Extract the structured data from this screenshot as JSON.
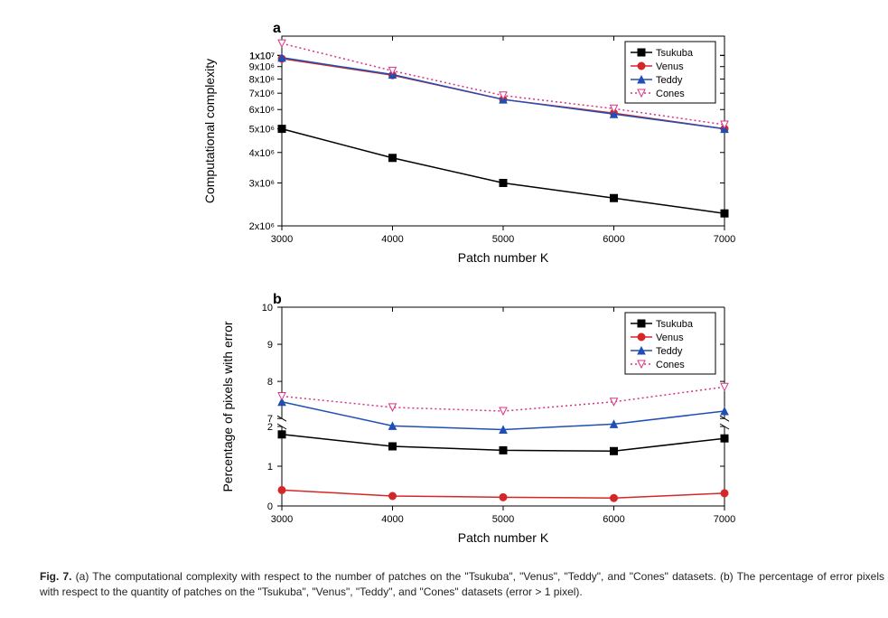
{
  "chart_a": {
    "panel_label": "a",
    "panel_label_fontsize": 16,
    "panel_label_fontweight": "bold",
    "type": "line",
    "xlabel": "Patch number K",
    "ylabel": "Computational complexity",
    "label_fontsize": 14,
    "tick_fontsize": 11,
    "xlim": [
      3000,
      7000
    ],
    "xticks": [
      3000,
      4000,
      5000,
      6000,
      7000
    ],
    "yscale": "log",
    "ylim": [
      2000000.0,
      12000000.0
    ],
    "yticks": [
      2000000.0,
      3000000.0,
      4000000.0,
      5000000.0,
      6000000.0,
      7000000.0,
      8000000.0,
      9000000.0,
      10000000.0,
      10000000.0,
      10000000.0
    ],
    "ytick_labels": [
      "2x10⁶",
      "3x10⁶",
      "4x10⁶",
      "5x10⁶",
      "6x10⁶",
      "7x10⁶",
      "8x10⁶",
      "9x10⁶",
      "1x10⁷",
      "1x10⁷",
      "1x10⁷"
    ],
    "background_color": "#ffffff",
    "axis_color": "#000000",
    "series": [
      {
        "name": "Tsukuba",
        "color": "#000000",
        "marker": "square",
        "marker_fill": "#000000",
        "line_style": "solid",
        "line_width": 1.5,
        "x": [
          3000,
          4000,
          5000,
          6000,
          7000
        ],
        "y": [
          5000000.0,
          3800000.0,
          3000000.0,
          2600000.0,
          2250000.0
        ]
      },
      {
        "name": "Venus",
        "color": "#d62728",
        "marker": "circle",
        "marker_fill": "#d62728",
        "line_style": "solid",
        "line_width": 1.5,
        "x": [
          3000,
          4000,
          5000,
          6000,
          7000
        ],
        "y": [
          9700000.0,
          8300000.0,
          6600000.0,
          5800000.0,
          5000000.0
        ]
      },
      {
        "name": "Teddy",
        "color": "#1f4fb4",
        "marker": "triangle",
        "marker_fill": "#1f4fb4",
        "line_style": "solid",
        "line_width": 1.5,
        "x": [
          3000,
          4000,
          5000,
          6000,
          7000
        ],
        "y": [
          9800000.0,
          8350000.0,
          6600000.0,
          5750000.0,
          5000000.0
        ]
      },
      {
        "name": "Cones",
        "color": "#d63384",
        "marker": "triangle-down",
        "marker_fill": "#ffffff",
        "line_style": "dotted",
        "line_width": 1.5,
        "x": [
          3000,
          4000,
          5000,
          6000,
          7000
        ],
        "y": [
          11200000.0,
          8650000.0,
          6850000.0,
          6050000.0,
          5200000.0
        ]
      }
    ],
    "legend": {
      "position": "top-right",
      "fontsize": 11,
      "border_color": "#000000",
      "line_labels": [
        "Tsukuba",
        "Venus",
        "Teddy",
        "Cones"
      ]
    }
  },
  "chart_b": {
    "panel_label": "b",
    "panel_label_fontsize": 16,
    "panel_label_fontweight": "bold",
    "type": "line",
    "xlabel": "Patch number K",
    "ylabel": "Percentage of pixels with error",
    "label_fontsize": 14,
    "tick_fontsize": 11,
    "xlim": [
      3000,
      7000
    ],
    "xticks": [
      3000,
      4000,
      5000,
      6000,
      7000
    ],
    "yscale": "broken",
    "y_lower_lim": [
      0,
      2
    ],
    "y_lower_ticks": [
      0,
      1,
      2
    ],
    "y_upper_lim": [
      7,
      10
    ],
    "y_upper_ticks": [
      7,
      8,
      9,
      10
    ],
    "background_color": "#ffffff",
    "axis_color": "#000000",
    "series": [
      {
        "name": "Tsukuba",
        "color": "#000000",
        "marker": "square",
        "marker_fill": "#000000",
        "line_style": "solid",
        "line_width": 1.5,
        "x": [
          3000,
          4000,
          5000,
          6000,
          7000
        ],
        "y": [
          1.8,
          1.5,
          1.4,
          1.38,
          1.7
        ]
      },
      {
        "name": "Venus",
        "color": "#d62728",
        "marker": "circle",
        "marker_fill": "#d62728",
        "line_style": "solid",
        "line_width": 1.5,
        "x": [
          3000,
          4000,
          5000,
          6000,
          7000
        ],
        "y": [
          0.4,
          0.25,
          0.22,
          0.2,
          0.32
        ]
      },
      {
        "name": "Teddy",
        "color": "#1f4fb4",
        "marker": "triangle",
        "marker_fill": "#1f4fb4",
        "line_style": "solid",
        "line_width": 1.5,
        "x": [
          3000,
          4000,
          5000,
          6000,
          7000
        ],
        "y": [
          7.45,
          6.8,
          6.7,
          6.85,
          7.2
        ]
      },
      {
        "name": "Cones",
        "color": "#d63384",
        "marker": "triangle-down",
        "marker_fill": "#ffffff",
        "line_style": "dotted",
        "line_width": 1.5,
        "x": [
          3000,
          4000,
          5000,
          6000,
          7000
        ],
        "y": [
          7.6,
          7.3,
          7.2,
          7.45,
          7.85
        ]
      }
    ],
    "legend": {
      "position": "top-right",
      "fontsize": 11,
      "border_color": "#000000",
      "line_labels": [
        "Tsukuba",
        "Venus",
        "Teddy",
        "Cones"
      ]
    }
  },
  "caption": {
    "label": "Fig. 7.",
    "text_a": "(a) The computational complexity with respect to the number of patches on the \"Tsukuba\", \"Venus\", \"Teddy\", and \"Cones\" datasets.",
    "text_b": "(b) The percentage of error pixels with respect to the quantity of patches on the \"Tsukuba\", \"Venus\", \"Teddy\", and \"Cones\" datasets (error > 1 pixel)."
  }
}
